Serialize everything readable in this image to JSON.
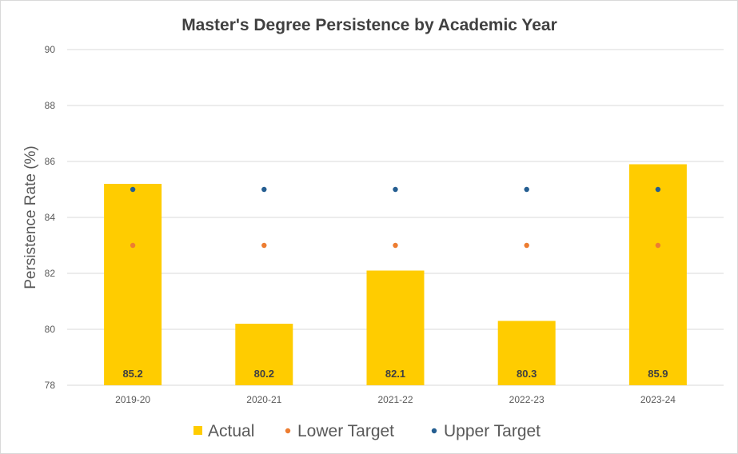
{
  "chart_data": {
    "type": "bar",
    "title": "Master's Degree Persistence by Academic Year",
    "xlabel": "",
    "ylabel": "Persistence Rate (%)",
    "ylim": [
      78,
      90
    ],
    "yticks": [
      78,
      80,
      82,
      84,
      86,
      88,
      90
    ],
    "categories": [
      "2019-20",
      "2020-21",
      "2021-22",
      "2022-23",
      "2023-24"
    ],
    "series": [
      {
        "name": "Actual",
        "kind": "bar",
        "color": "#FFCC00",
        "values": [
          85.2,
          80.2,
          82.1,
          80.3,
          85.9
        ]
      },
      {
        "name": "Lower Target",
        "kind": "point",
        "color": "#ED7D31",
        "values": [
          83,
          83,
          83,
          83,
          83
        ]
      },
      {
        "name": "Upper Target",
        "kind": "point",
        "color": "#255E91",
        "values": [
          85,
          85,
          85,
          85,
          85
        ]
      }
    ],
    "data_labels": [
      "85.2",
      "80.2",
      "82.1",
      "80.3",
      "85.9"
    ],
    "grid": true,
    "legend_position": "bottom"
  }
}
